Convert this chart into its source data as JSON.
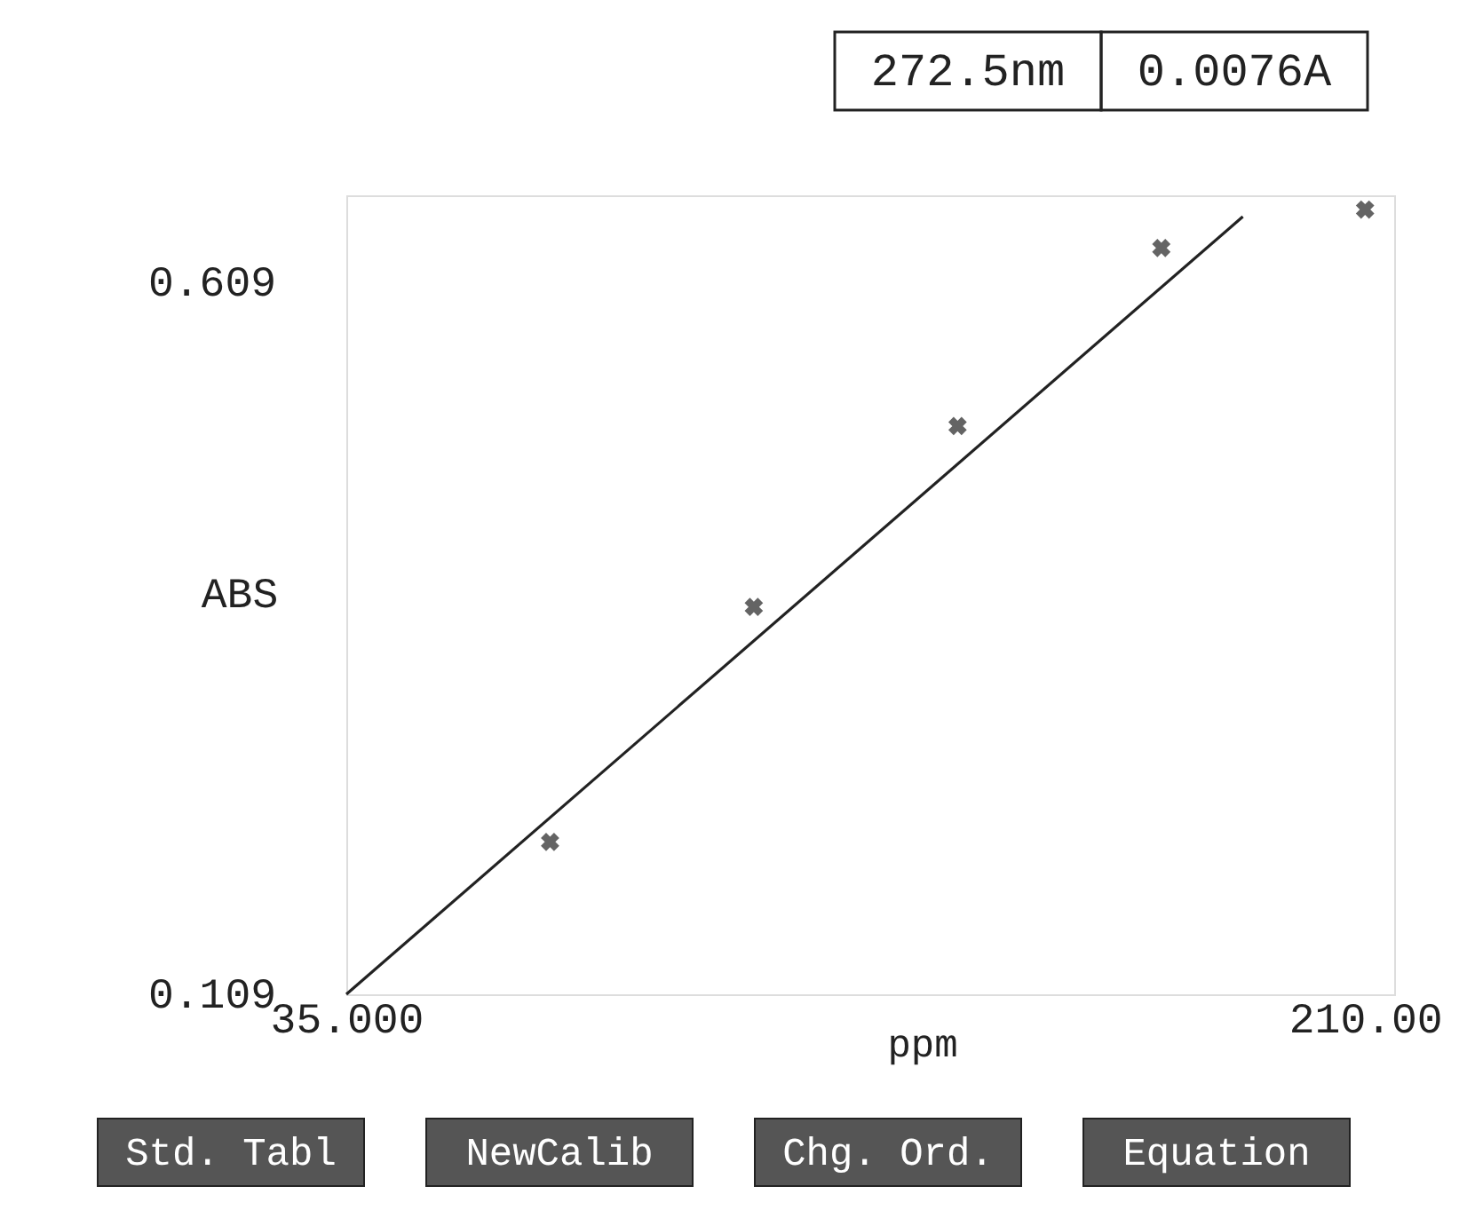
{
  "chart_data": {
    "type": "scatter",
    "xlabel": "ppm",
    "ylabel": "ABS",
    "xlim": [
      35,
      215
    ],
    "ylim": [
      0.109,
      0.67
    ],
    "xticks": [
      {
        "value": 35,
        "label": "35.000"
      },
      {
        "value": 210,
        "label": "210.00"
      }
    ],
    "yticks": [
      0.109,
      0.609
    ],
    "grid": false,
    "marker": "cross",
    "series": [
      {
        "color": "#222222",
        "x": [
          70,
          105,
          140,
          175,
          210
        ],
        "values": [
          0.216,
          0.381,
          0.508,
          0.633,
          0.66
        ]
      },
      {
        "type": "line",
        "marker": "none",
        "color": "#222222",
        "line_style": "solid",
        "x": [
          35,
          189
        ],
        "values": [
          0.109,
          0.655
        ]
      }
    ],
    "annotations": [
      "272.5nm",
      "0.0076A",
      "Std. Tabl",
      "NewCalib",
      "Chg. Ord.",
      "Equation"
    ]
  }
}
